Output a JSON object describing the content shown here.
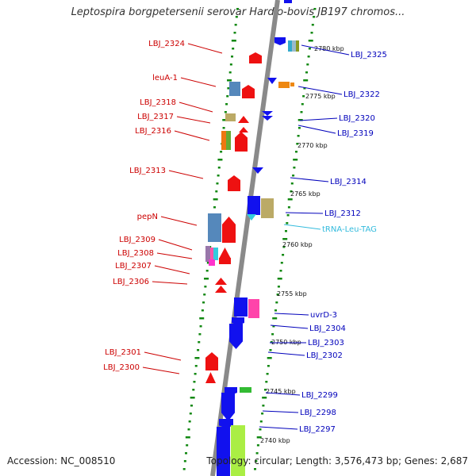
{
  "title": "Leptospira borgpetersenii serovar Hardjo-bovis JB197 chromos...",
  "accession": "Accession: NC_008510",
  "summary": "Topology: circular; Length: 3,576,473 bp; Genes: 2,687",
  "colors": {
    "backbone": "#8a8a8a",
    "tick": "#118811",
    "left_label": "#cc0000",
    "right_label": "#0000bb",
    "trna_label": "#33bbdd"
  },
  "kbp_labels": [
    "2780 kbp",
    "2775 kbp",
    "2770 kbp",
    "2765 kbp",
    "2760 kbp",
    "2755 kbp",
    "2750 kbp",
    "2745 kbp",
    "2740 kbp"
  ],
  "left_genes": [
    "LBJ_2324",
    "leuA-1",
    "LBJ_2318",
    "LBJ_2317",
    "LBJ_2316",
    "LBJ_2313",
    "pepN",
    "LBJ_2309",
    "LBJ_2308",
    "LBJ_2307",
    "LBJ_2306",
    "LBJ_2301",
    "LBJ_2300"
  ],
  "right_genes": [
    "LBJ_2325",
    "LBJ_2322",
    "LBJ_2320",
    "LBJ_2319",
    "LBJ_2314",
    "LBJ_2312",
    "tRNA-Leu-TAG",
    "uvrD-3",
    "LBJ_2304",
    "LBJ_2303",
    "LBJ_2302",
    "LBJ_2299",
    "LBJ_2298",
    "LBJ_2297"
  ]
}
